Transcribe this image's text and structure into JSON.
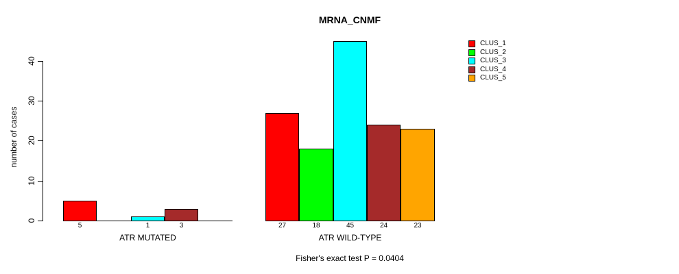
{
  "chart_data": {
    "type": "bar",
    "title": "MRNA_CNMF",
    "ylabel": "number of cases",
    "xlabel": "",
    "annotation": "Fisher's exact test P = 0.0404",
    "categories": [
      "ATR MUTATED",
      "ATR WILD-TYPE"
    ],
    "series": [
      {
        "name": "CLUS_1",
        "color": "#FF0000",
        "values": [
          5,
          27
        ]
      },
      {
        "name": "CLUS_2",
        "color": "#00FF00",
        "values": [
          0,
          18
        ]
      },
      {
        "name": "CLUS_3",
        "color": "#00FFFF",
        "values": [
          1,
          45
        ]
      },
      {
        "name": "CLUS_4",
        "color": "#A52A2A",
        "values": [
          3,
          24
        ]
      },
      {
        "name": "CLUS_5",
        "color": "#FFA500",
        "values": [
          0,
          23
        ]
      }
    ],
    "yticks": [
      0,
      10,
      20,
      30,
      40
    ],
    "ylim": [
      0,
      45
    ],
    "grid": false,
    "legend_position": "right",
    "legend_entries": [
      "CLUS_1",
      "CLUS_2",
      "CLUS_3",
      "CLUS_4",
      "CLUS_5"
    ],
    "zero_bars_hidden": true,
    "bar_labels": "values shown under each nonzero bar"
  }
}
